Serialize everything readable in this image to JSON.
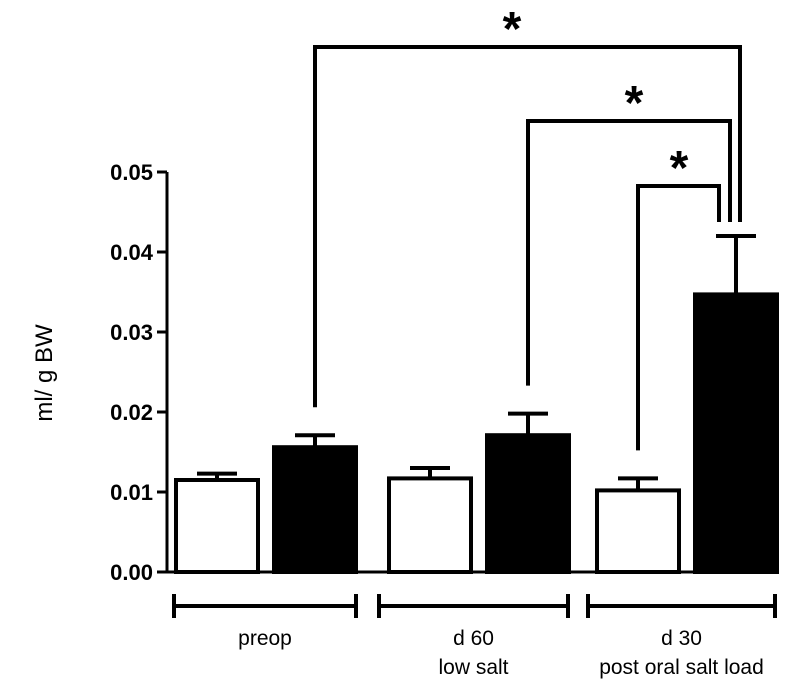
{
  "chart_data": {
    "type": "bar",
    "ylabel": "ml/ g BW",
    "ylim": [
      0,
      0.05
    ],
    "yticks": [
      "0.00",
      "0.01",
      "0.02",
      "0.03",
      "0.04",
      "0.05"
    ],
    "ytick_values": [
      0,
      0.01,
      0.02,
      0.03,
      0.04,
      0.05
    ],
    "grid": false,
    "groups": [
      {
        "label_lines": [
          "preop"
        ]
      },
      {
        "label_lines": [
          "d 60",
          "low salt"
        ]
      },
      {
        "label_lines": [
          "d 30",
          "post oral salt load"
        ]
      }
    ],
    "series": [
      {
        "fill": "#ffffff",
        "values": [
          0.0115,
          0.0117,
          0.0102
        ],
        "errors": [
          0.0008,
          0.0013,
          0.0015
        ]
      },
      {
        "fill": "#000000",
        "values": [
          0.0156,
          0.0171,
          0.0347
        ],
        "errors": [
          0.0015,
          0.0027,
          0.0073
        ]
      }
    ],
    "significance": [
      {
        "from_group": 0,
        "from_series": 1,
        "to_group": 2,
        "to_series": 1,
        "label": "*"
      },
      {
        "from_group": 1,
        "from_series": 1,
        "to_group": 2,
        "to_series": 1,
        "label": "*"
      },
      {
        "from_group": 2,
        "from_series": 0,
        "to_group": 2,
        "to_series": 1,
        "label": "*"
      }
    ]
  },
  "colors": {
    "axis": "#000000",
    "bar_outline": "#000000"
  }
}
